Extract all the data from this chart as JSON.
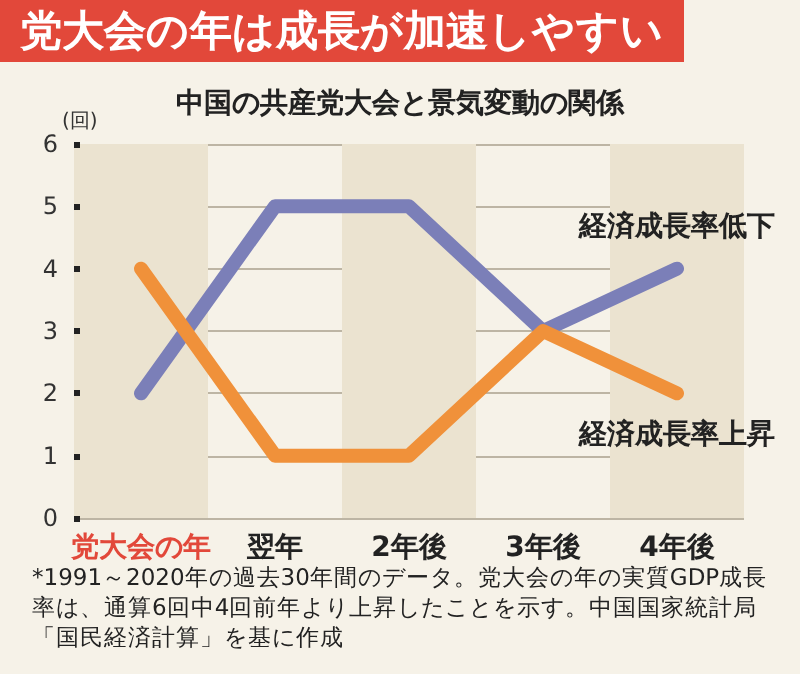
{
  "chart_data": {
    "type": "line",
    "title": "党大会の年は成長が加速しやすい",
    "subtitle": "中国の共産党大会と景気変動の関係",
    "ylabel": "(回)",
    "categories": [
      "党大会の年",
      "翌年",
      "2年後",
      "3年後",
      "4年後"
    ],
    "series": [
      {
        "name": "経済成長率低下",
        "color": "#7b7fb8",
        "values": [
          2,
          5,
          5,
          3,
          4
        ]
      },
      {
        "name": "経済成長率上昇",
        "color": "#f0913a",
        "values": [
          4,
          1,
          1,
          3,
          2
        ]
      }
    ],
    "ylim": [
      0,
      6
    ],
    "yticks": [
      0,
      1,
      2,
      3,
      4,
      5,
      6
    ],
    "grid": "y",
    "marker": "none",
    "line_style": "solid",
    "legend": false,
    "annotations": [
      "*1991～2020年の過去30年間のデータ。党大会の年の実質GDP成長率は、通算6回中4回前年より上昇したことを示す。中国国家統計局「国民経済計算」を基に作成"
    ]
  }
}
